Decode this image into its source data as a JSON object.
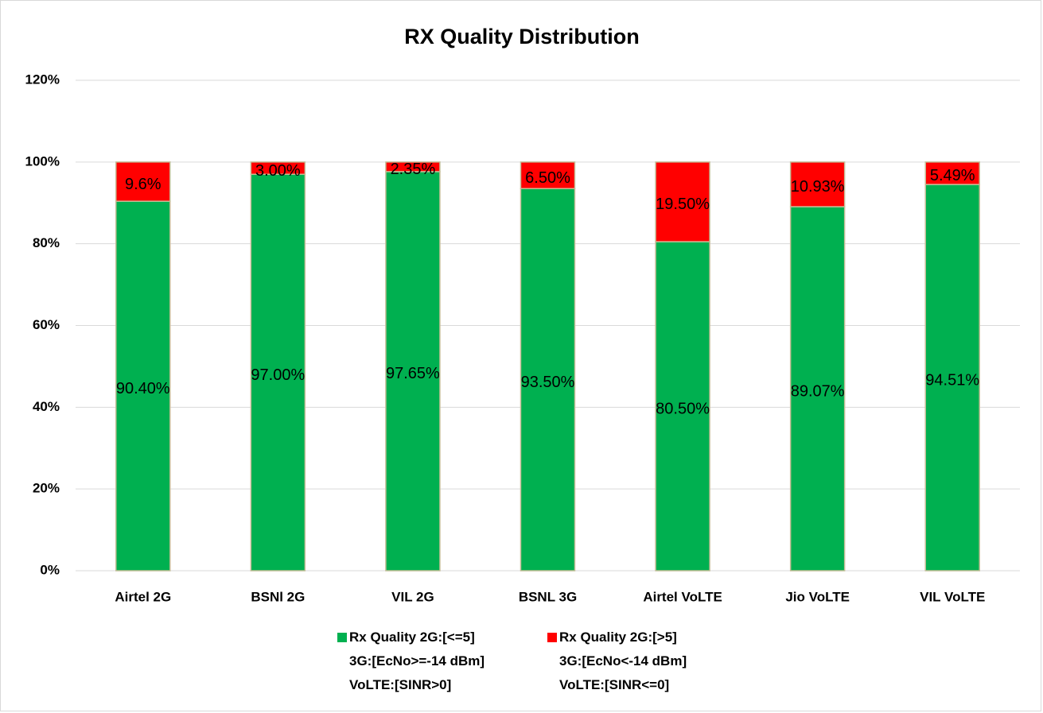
{
  "chart_data": {
    "type": "stacked_bar",
    "title": "RX Quality Distribution",
    "categories": [
      "Airtel 2G",
      "BSNl 2G",
      "VIL 2G",
      "BSNL 3G",
      "Airtel VoLTE",
      "Jio VoLTE",
      "VIL VoLTE"
    ],
    "series": [
      {
        "name": "Rx Quality 2G:[<=5]\n3G:[EcNo>=-14 dBm]\nVoLTE:[SINR>0]",
        "color": "#00b050",
        "values": [
          90.4,
          97.0,
          97.65,
          93.5,
          80.5,
          89.07,
          94.51
        ],
        "value_labels": [
          "90.40%",
          "97.00%",
          "97.65%",
          "93.50%",
          "80.50%",
          "89.07%",
          "94.51%"
        ]
      },
      {
        "name": "Rx Quality 2G:[>5]\n3G:[EcNo<-14 dBm]\nVoLTE:[SINR<=0]",
        "color": "#ff0000",
        "values": [
          9.6,
          3.0,
          2.35,
          6.5,
          19.5,
          10.93,
          5.49
        ],
        "value_labels": [
          "9.6%",
          "3.00%",
          "2.35%",
          "6.50%",
          "19.50%",
          "10.93%",
          "5.49%"
        ]
      }
    ],
    "ylim": [
      0,
      120
    ],
    "yticks": [
      {
        "value": 0,
        "label": "0%"
      },
      {
        "value": 20,
        "label": "20%"
      },
      {
        "value": 40,
        "label": "40%"
      },
      {
        "value": 60,
        "label": "60%"
      },
      {
        "value": 80,
        "label": "80%"
      },
      {
        "value": 100,
        "label": "100%"
      },
      {
        "value": 120,
        "label": "120%"
      }
    ],
    "grid": true,
    "legend": "bottom"
  }
}
